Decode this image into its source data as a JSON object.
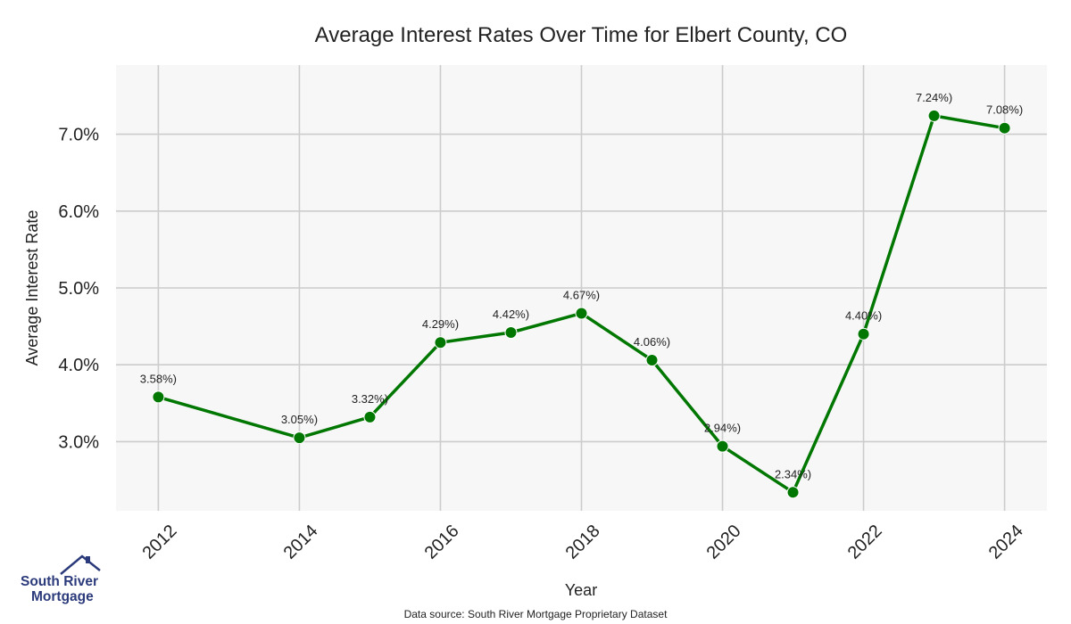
{
  "chart_data": {
    "type": "line",
    "title": "Average Interest Rates Over Time for Elbert County, CO",
    "xlabel": "Year",
    "ylabel": "Average Interest Rate",
    "x": [
      2012,
      2014,
      2015,
      2016,
      2017,
      2018,
      2019,
      2020,
      2021,
      2022,
      2023,
      2024
    ],
    "series": [
      {
        "values": [
          3.58,
          3.05,
          3.32,
          4.29,
          4.42,
          4.67,
          4.06,
          2.94,
          2.34,
          4.4,
          7.24,
          7.08
        ],
        "labels": [
          "3.58%)",
          "3.05%)",
          "3.32%)",
          "4.29%)",
          "4.42%)",
          "4.67%)",
          "4.06%)",
          "2.94%)",
          "2.34%)",
          "4.40%)",
          "7.24%)",
          "7.08%)"
        ]
      }
    ],
    "xticks": [
      "2012",
      "2014",
      "2016",
      "2018",
      "2020",
      "2022",
      "2024"
    ],
    "yticks": [
      "3.0%",
      "4.0%",
      "5.0%",
      "6.0%",
      "7.0%"
    ],
    "ytick_values": [
      3,
      4,
      5,
      6,
      7
    ],
    "xtick_values": [
      2012,
      2014,
      2016,
      2018,
      2020,
      2022,
      2024
    ],
    "xlim": [
      2011.4,
      2024.6
    ],
    "ylim": [
      2.1,
      7.9
    ],
    "grid": true,
    "colors": {
      "line": "#007700",
      "grid": "#cccccc",
      "background": "#f7f7f7"
    }
  },
  "logo": {
    "line1": "South River",
    "line2": "Mortgage"
  },
  "source_note": "Data source: South River Mortgage Proprietary Dataset"
}
